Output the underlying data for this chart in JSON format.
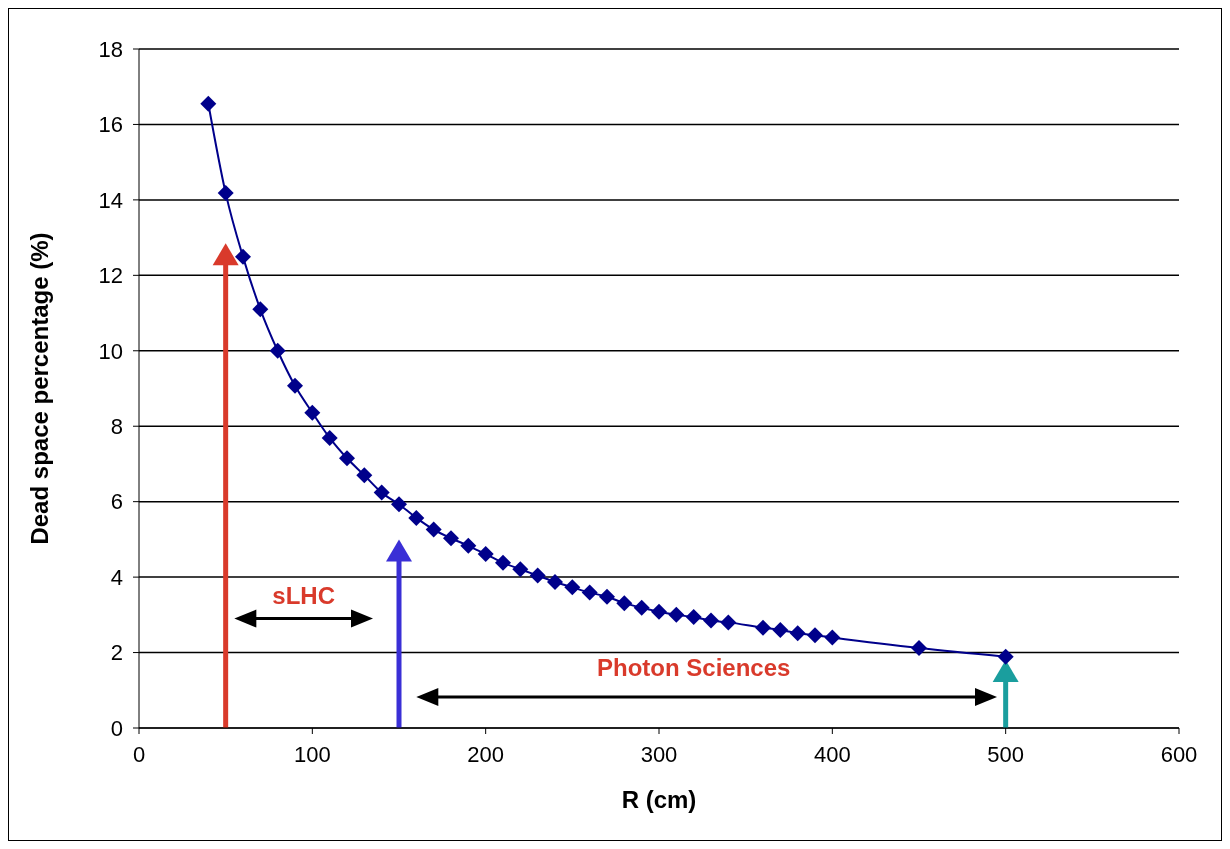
{
  "chart_data": {
    "type": "line",
    "xlabel": "R (cm)",
    "ylabel": "Dead space percentage (%)",
    "x": [
      40,
      50,
      60,
      70,
      80,
      90,
      100,
      110,
      120,
      130,
      140,
      150,
      160,
      170,
      180,
      190,
      200,
      210,
      220,
      230,
      240,
      250,
      260,
      270,
      280,
      290,
      300,
      310,
      320,
      330,
      340,
      360,
      370,
      380,
      390,
      400,
      450,
      500
    ],
    "series": [
      {
        "color": "#00008b",
        "values": [
          16.55,
          14.18,
          12.49,
          11.1,
          10.0,
          9.07,
          8.36,
          7.69,
          7.15,
          6.7,
          6.24,
          5.93,
          5.57,
          5.26,
          5.03,
          4.83,
          4.61,
          4.38,
          4.21,
          4.04,
          3.87,
          3.73,
          3.59,
          3.48,
          3.31,
          3.19,
          3.08,
          3.0,
          2.94,
          2.85,
          2.8,
          2.66,
          2.6,
          2.51,
          2.46,
          2.4,
          2.12,
          1.89
        ]
      }
    ],
    "xlim": [
      0,
      600
    ],
    "xticks": [
      0,
      100,
      200,
      300,
      400,
      500,
      600
    ],
    "ylim": [
      0,
      18
    ],
    "yticks": [
      0,
      2,
      4,
      6,
      8,
      10,
      12,
      14,
      16,
      18
    ],
    "grid": "y",
    "marker": "diamond",
    "line_style": "solid",
    "annotations": [
      "sLHC",
      "Photon Sciences"
    ]
  }
}
